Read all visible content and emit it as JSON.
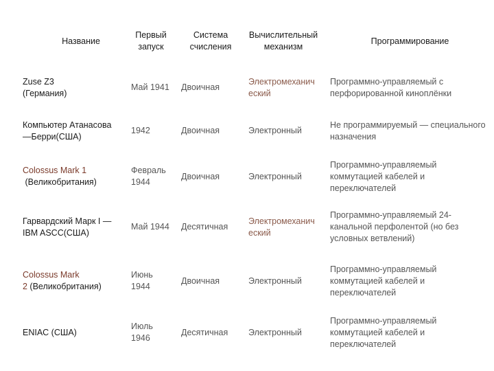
{
  "headers": {
    "name": "Название",
    "first_launch": "Первый\nзапуск",
    "numeral_system": "Система\nсчисления",
    "mechanism": "Вычислительный\nмеханизм",
    "programming": "Программирование"
  },
  "rows": [
    {
      "name_line1": "Zuse Z3",
      "name_line2": "(Германия)",
      "launch": "Май 1941",
      "system": "Двоичная",
      "mechanism": "Электромеханич\nеский",
      "programming": "Программно-управляемый с\nперфорированной киноплёнки"
    },
    {
      "name_line1": "Компьютер Атанасова",
      "name_line2": "—Берри(США)",
      "launch": "1942",
      "system": "Двоичная",
      "mechanism": "Электронный",
      "programming": "Не программируемый — специального\nназначения"
    },
    {
      "name_line1": "Colossus Mark 1",
      "name_line2": " (Великобритания)",
      "launch": "Февраль\n1944",
      "system": "Двоичная",
      "mechanism": "Электронный",
      "programming": "Программно-управляемый\nкоммутацией кабелей и\nпереключателей"
    },
    {
      "name_line1": "Гарвардский Марк I —",
      "name_line2": "IBM ASCC(США)",
      "launch": "Май 1944",
      "system": "Десятичная",
      "mechanism": "Электромеханич\nеский",
      "programming": "Программно-управляемый 24-\nканальной перфолентой (но без\nусловных ветвлений)"
    },
    {
      "name_line1": "Colossus Mark",
      "name_line2": "2",
      "name_line2b": " (Великобритания)",
      "launch": "Июнь\n1944",
      "system": "Двоичная",
      "mechanism": "Электронный",
      "programming": "Программно-управляемый\nкоммутацией кабелей и\nпереключателей"
    },
    {
      "name_line1": "ENIAC",
      "name_line1b": " (США)",
      "launch": "Июль\n1946",
      "system": "Десятичная",
      "mechanism": "Электронный",
      "programming": "Программно-управляемый\nкоммутацией кабелей и\nпереключателей"
    }
  ]
}
